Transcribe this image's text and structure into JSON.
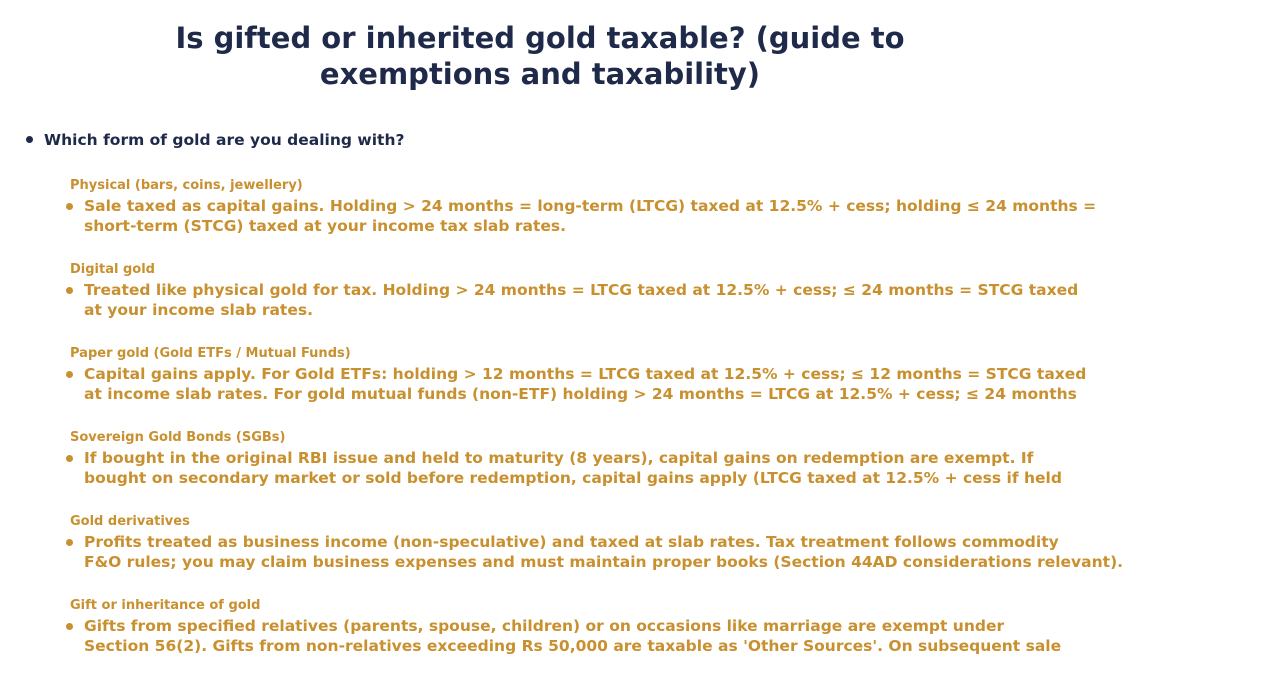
{
  "title": {
    "line1": "Is gifted or inherited gold taxable? (guide to",
    "line2": "exemptions and taxability)"
  },
  "question": "Which form of gold are you dealing with?",
  "colors": {
    "title": "#1f2a4a",
    "accent": "#c8902f"
  },
  "sections": [
    {
      "label": "Physical (bars, coins, jewellery)",
      "line1": "Sale taxed as capital gains. Holding > 24 months = long-term (LTCG) taxed at 12.5% + cess; holding ≤ 24 months =",
      "line2": "short-term (STCG) taxed at your income tax slab rates."
    },
    {
      "label": "Digital gold",
      "line1": "Treated like physical gold for tax. Holding > 24 months = LTCG taxed at 12.5% + cess; ≤ 24 months = STCG taxed",
      "line2": "at your income slab rates."
    },
    {
      "label": "Paper gold (Gold ETFs / Mutual Funds)",
      "line1": "Capital gains apply. For Gold ETFs: holding > 12 months = LTCG taxed at 12.5% + cess; ≤ 12 months = STCG taxed",
      "line2": "at income slab rates. For gold mutual funds (non-ETF) holding > 24 months = LTCG at 12.5% + cess; ≤ 24 months"
    },
    {
      "label": "Sovereign Gold Bonds (SGBs)",
      "line1": "If bought in the original RBI issue and held to maturity (8 years), capital gains on redemption are exempt. If",
      "line2": "bought on secondary market or sold before redemption, capital gains apply (LTCG taxed at 12.5% + cess if held"
    },
    {
      "label": "Gold derivatives",
      "line1": "Profits treated as business income (non-speculative) and taxed at slab rates. Tax treatment follows commodity",
      "line2": "F&O rules; you may claim business expenses and must maintain proper books (Section 44AD considerations relevant)."
    },
    {
      "label": "Gift or inheritance of gold",
      "line1": "Gifts from specified relatives (parents, spouse, children) or on occasions like marriage are exempt under",
      "line2": "Section 56(2). Gifts from non-relatives exceeding Rs 50,000 are taxable as 'Other Sources'. On subsequent sale"
    }
  ]
}
